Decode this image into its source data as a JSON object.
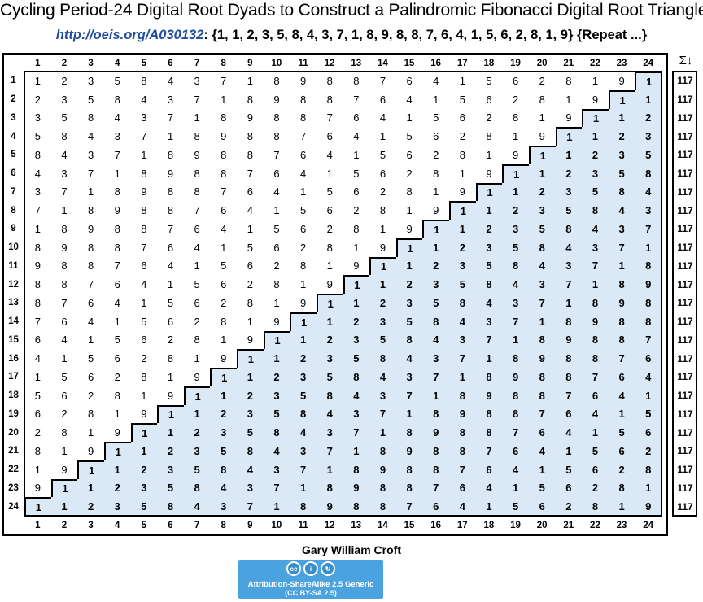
{
  "title": "Cycling Period-24 Digital Root Dyads to Construct a Palindromic Fibonacci Digital Root Triangle",
  "subtitle": {
    "link": "http://oeis.org/A030132",
    "text": ": {1, 1, 2, 3, 5, 8, 4, 3, 7, 1, 8, 9, 8, 8, 7, 6, 4, 1, 5, 6, 2, 8, 1, 9} {Repeat ...}"
  },
  "sum_header": "Σ↓",
  "columns": [
    "1",
    "2",
    "3",
    "4",
    "5",
    "6",
    "7",
    "8",
    "9",
    "10",
    "11",
    "12",
    "13",
    "14",
    "15",
    "16",
    "17",
    "18",
    "19",
    "20",
    "21",
    "22",
    "23",
    "24"
  ],
  "rows": [
    {
      "label": "1",
      "values": [
        1,
        2,
        3,
        5,
        8,
        4,
        3,
        7,
        1,
        8,
        9,
        8,
        8,
        7,
        6,
        4,
        1,
        5,
        6,
        2,
        8,
        1,
        9,
        1
      ],
      "sum": "117"
    },
    {
      "label": "2",
      "values": [
        2,
        3,
        5,
        8,
        4,
        3,
        7,
        1,
        8,
        9,
        8,
        8,
        7,
        6,
        4,
        1,
        5,
        6,
        2,
        8,
        1,
        9,
        1,
        1
      ],
      "sum": "117"
    },
    {
      "label": "3",
      "values": [
        3,
        5,
        8,
        4,
        3,
        7,
        1,
        8,
        9,
        8,
        8,
        7,
        6,
        4,
        1,
        5,
        6,
        2,
        8,
        1,
        9,
        1,
        1,
        2
      ],
      "sum": "117"
    },
    {
      "label": "4",
      "values": [
        5,
        8,
        4,
        3,
        7,
        1,
        8,
        9,
        8,
        8,
        7,
        6,
        4,
        1,
        5,
        6,
        2,
        8,
        1,
        9,
        1,
        1,
        2,
        3
      ],
      "sum": "117"
    },
    {
      "label": "5",
      "values": [
        8,
        4,
        3,
        7,
        1,
        8,
        9,
        8,
        8,
        7,
        6,
        4,
        1,
        5,
        6,
        2,
        8,
        1,
        9,
        1,
        1,
        2,
        3,
        5
      ],
      "sum": "117"
    },
    {
      "label": "6",
      "values": [
        4,
        3,
        7,
        1,
        8,
        9,
        8,
        8,
        7,
        6,
        4,
        1,
        5,
        6,
        2,
        8,
        1,
        9,
        1,
        1,
        2,
        3,
        5,
        8
      ],
      "sum": "117"
    },
    {
      "label": "7",
      "values": [
        3,
        7,
        1,
        8,
        9,
        8,
        8,
        7,
        6,
        4,
        1,
        5,
        6,
        2,
        8,
        1,
        9,
        1,
        1,
        2,
        3,
        5,
        8,
        4
      ],
      "sum": "117"
    },
    {
      "label": "8",
      "values": [
        7,
        1,
        8,
        9,
        8,
        8,
        7,
        6,
        4,
        1,
        5,
        6,
        2,
        8,
        1,
        9,
        1,
        1,
        2,
        3,
        5,
        8,
        4,
        3
      ],
      "sum": "117"
    },
    {
      "label": "9",
      "values": [
        1,
        8,
        9,
        8,
        8,
        7,
        6,
        4,
        1,
        5,
        6,
        2,
        8,
        1,
        9,
        1,
        1,
        2,
        3,
        5,
        8,
        4,
        3,
        7
      ],
      "sum": "117"
    },
    {
      "label": "10",
      "values": [
        8,
        9,
        8,
        8,
        7,
        6,
        4,
        1,
        5,
        6,
        2,
        8,
        1,
        9,
        1,
        1,
        2,
        3,
        5,
        8,
        4,
        3,
        7,
        1
      ],
      "sum": "117"
    },
    {
      "label": "11",
      "values": [
        9,
        8,
        8,
        7,
        6,
        4,
        1,
        5,
        6,
        2,
        8,
        1,
        9,
        1,
        1,
        2,
        3,
        5,
        8,
        4,
        3,
        7,
        1,
        8
      ],
      "sum": "117"
    },
    {
      "label": "12",
      "values": [
        8,
        8,
        7,
        6,
        4,
        1,
        5,
        6,
        2,
        8,
        1,
        9,
        1,
        1,
        2,
        3,
        5,
        8,
        4,
        3,
        7,
        1,
        8,
        9
      ],
      "sum": "117"
    },
    {
      "label": "13",
      "values": [
        8,
        7,
        6,
        4,
        1,
        5,
        6,
        2,
        8,
        1,
        9,
        1,
        1,
        2,
        3,
        5,
        8,
        4,
        3,
        7,
        1,
        8,
        9,
        8
      ],
      "sum": "117"
    },
    {
      "label": "14",
      "values": [
        7,
        6,
        4,
        1,
        5,
        6,
        2,
        8,
        1,
        9,
        1,
        1,
        2,
        3,
        5,
        8,
        4,
        3,
        7,
        1,
        8,
        9,
        8,
        8
      ],
      "sum": "117"
    },
    {
      "label": "15",
      "values": [
        6,
        4,
        1,
        5,
        6,
        2,
        8,
        1,
        9,
        1,
        1,
        2,
        3,
        5,
        8,
        4,
        3,
        7,
        1,
        8,
        9,
        8,
        8,
        7
      ],
      "sum": "117"
    },
    {
      "label": "16",
      "values": [
        4,
        1,
        5,
        6,
        2,
        8,
        1,
        9,
        1,
        1,
        2,
        3,
        5,
        8,
        4,
        3,
        7,
        1,
        8,
        9,
        8,
        8,
        7,
        6
      ],
      "sum": "117"
    },
    {
      "label": "17",
      "values": [
        1,
        5,
        6,
        2,
        8,
        1,
        9,
        1,
        1,
        2,
        3,
        5,
        8,
        4,
        3,
        7,
        1,
        8,
        9,
        8,
        8,
        7,
        6,
        4
      ],
      "sum": "117"
    },
    {
      "label": "18",
      "values": [
        5,
        6,
        2,
        8,
        1,
        9,
        1,
        1,
        2,
        3,
        5,
        8,
        4,
        3,
        7,
        1,
        8,
        9,
        8,
        8,
        7,
        6,
        4,
        1
      ],
      "sum": "117"
    },
    {
      "label": "19",
      "values": [
        6,
        2,
        8,
        1,
        9,
        1,
        1,
        2,
        3,
        5,
        8,
        4,
        3,
        7,
        1,
        8,
        9,
        8,
        8,
        7,
        6,
        4,
        1,
        5
      ],
      "sum": "117"
    },
    {
      "label": "20",
      "values": [
        2,
        8,
        1,
        9,
        1,
        1,
        2,
        3,
        5,
        8,
        4,
        3,
        7,
        1,
        8,
        9,
        8,
        8,
        7,
        6,
        4,
        1,
        5,
        6
      ],
      "sum": "117"
    },
    {
      "label": "21",
      "values": [
        8,
        1,
        9,
        1,
        1,
        2,
        3,
        5,
        8,
        4,
        3,
        7,
        1,
        8,
        9,
        8,
        8,
        7,
        6,
        4,
        1,
        5,
        6,
        2
      ],
      "sum": "117"
    },
    {
      "label": "22",
      "values": [
        1,
        9,
        1,
        1,
        2,
        3,
        5,
        8,
        4,
        3,
        7,
        1,
        8,
        9,
        8,
        8,
        7,
        6,
        4,
        1,
        5,
        6,
        2,
        8
      ],
      "sum": "117"
    },
    {
      "label": "23",
      "values": [
        9,
        1,
        1,
        2,
        3,
        5,
        8,
        4,
        3,
        7,
        1,
        8,
        9,
        8,
        8,
        7,
        6,
        4,
        1,
        5,
        6,
        2,
        8,
        1
      ],
      "sum": "117"
    },
    {
      "label": "24",
      "values": [
        1,
        1,
        2,
        3,
        5,
        8,
        4,
        3,
        7,
        1,
        8,
        9,
        8,
        8,
        7,
        6,
        4,
        1,
        5,
        6,
        2,
        8,
        1,
        9
      ],
      "sum": "117"
    }
  ],
  "shading": {
    "rule": "row + column >= 25",
    "color": "#dbe9f6"
  },
  "author": "Gary William Croft",
  "license": {
    "line1": "Attribution-ShareAlike 2.5 Generic",
    "line2": "(CC BY-SA 2.5)",
    "color": "#4aa3df"
  }
}
